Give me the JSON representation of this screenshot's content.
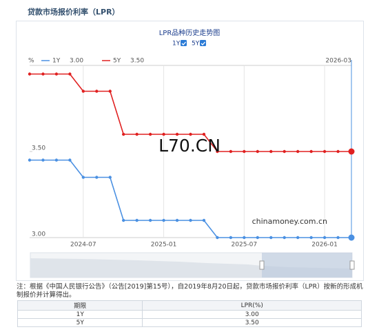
{
  "header": {
    "title": "贷款市场报价利率（LPR）"
  },
  "chart_data": {
    "type": "line",
    "title": "LPR品种历史走势图",
    "y_label": "%",
    "x": [
      "2024-03",
      "2024-04",
      "2024-05",
      "2024-06",
      "2024-07",
      "2024-08",
      "2024-09",
      "2024-10",
      "2024-11",
      "2024-12",
      "2025-01",
      "2025-02",
      "2025-03",
      "2025-04",
      "2025-05",
      "2025-06",
      "2025-07",
      "2025-08",
      "2025-09",
      "2025-10",
      "2025-11",
      "2025-12",
      "2026-01",
      "2026-02",
      "2026-03"
    ],
    "series": [
      {
        "name": "1Y",
        "color": "#4a90e2",
        "legend_value": "3.00",
        "values": [
          3.45,
          3.45,
          3.45,
          3.45,
          3.35,
          3.35,
          3.35,
          3.1,
          3.1,
          3.1,
          3.1,
          3.1,
          3.1,
          3.1,
          3.0,
          3.0,
          3.0,
          3.0,
          3.0,
          3.0,
          3.0,
          3.0,
          3.0,
          3.0,
          3.0
        ]
      },
      {
        "name": "5Y",
        "color": "#e02020",
        "legend_value": "3.50",
        "values": [
          3.95,
          3.95,
          3.95,
          3.95,
          3.85,
          3.85,
          3.85,
          3.6,
          3.6,
          3.6,
          3.6,
          3.6,
          3.6,
          3.6,
          3.5,
          3.5,
          3.5,
          3.5,
          3.5,
          3.5,
          3.5,
          3.5,
          3.5,
          3.5,
          3.5
        ]
      }
    ],
    "xticks": [
      "2024-07",
      "2025-01",
      "2025-07",
      "2026-01"
    ],
    "ylim": [
      3.0,
      4.0
    ],
    "yticks": [
      {
        "value": 3.5,
        "label": "3.50"
      },
      {
        "value": 3.0,
        "label": "3.00"
      }
    ],
    "watermark": "L70.CN",
    "source": "chinamoney.com.cn"
  },
  "note": "注：根据《中国人民银行公告》（公告[2019]第15号），自2019年8月20日起，贷款市场报价利率（LPR）按新的形成机制报价并计算得出。",
  "table": {
    "headers": [
      "期限",
      "LPR(%)"
    ],
    "rows": [
      [
        "1Y",
        "3.00"
      ],
      [
        "5Y",
        "3.50"
      ]
    ]
  }
}
